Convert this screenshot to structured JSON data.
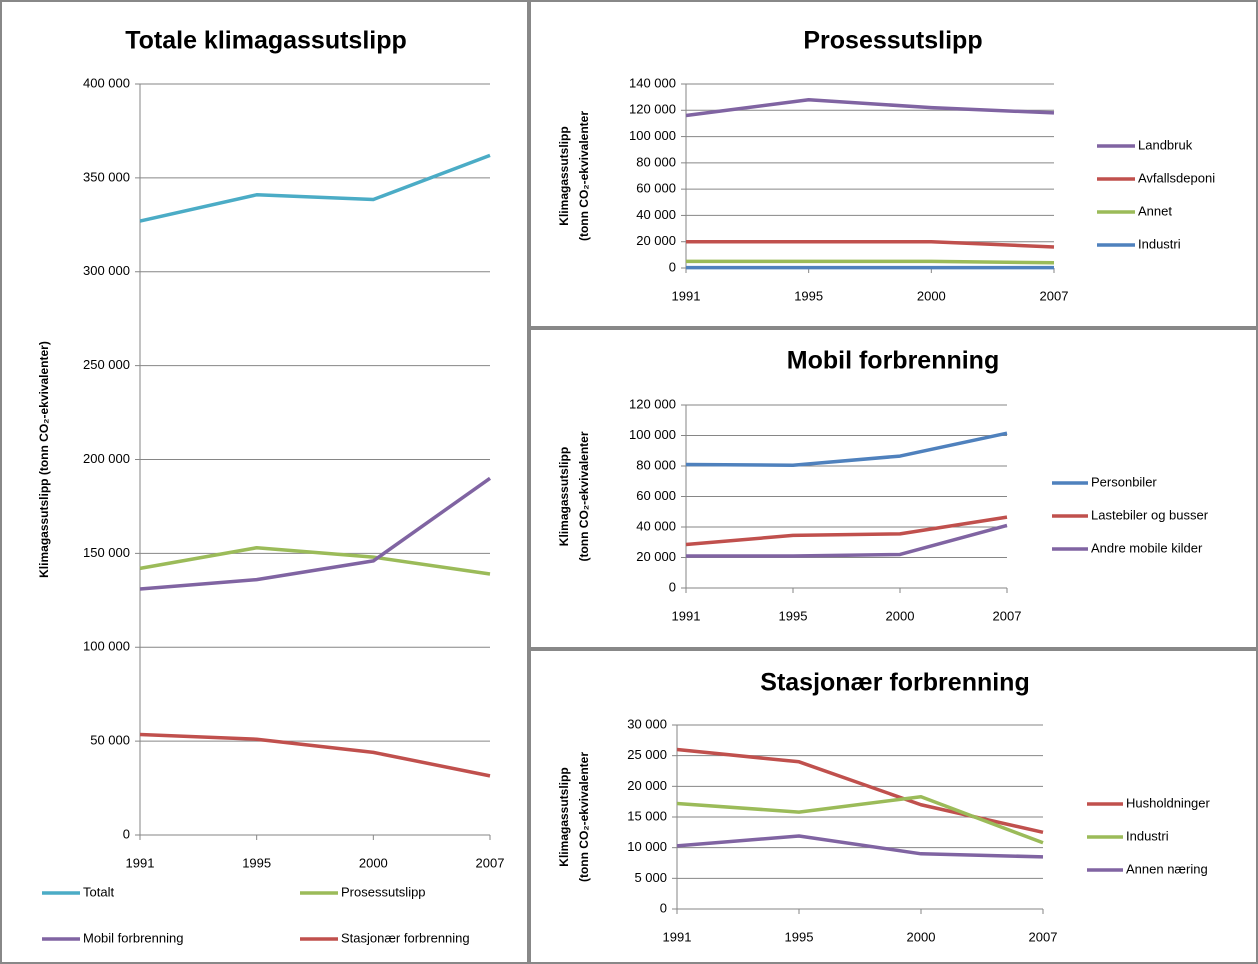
{
  "chart_data": [
    {
      "type": "line",
      "title": "Totale klimagassutslipp",
      "y_label": "Klimagassutslipp  (tonn CO₂-ekvivalenter)",
      "categories": [
        "1991",
        "1995",
        "2000",
        "2007"
      ],
      "ylim": [
        0,
        400000
      ],
      "yticks": [
        0,
        {
          "value": 50000,
          "label": "50 000"
        },
        {
          "value": 100000,
          "label": "100 000"
        },
        {
          "value": 150000,
          "label": "150 000"
        },
        {
          "value": 200000,
          "label": "200 000"
        },
        {
          "value": 250000,
          "label": "250 000"
        },
        {
          "value": 300000,
          "label": "300 000"
        },
        {
          "value": 350000,
          "label": "350 000"
        },
        {
          "value": 400000,
          "label": "400 000"
        }
      ],
      "grid": true,
      "legend": "bottom",
      "series": [
        {
          "name": "Totalt",
          "color": "#4bacc6",
          "values": [
            327000,
            341000,
            338500,
            362000
          ]
        },
        {
          "name": "Prosessutslipp",
          "color": "#9bbb59",
          "values": [
            142000,
            153000,
            148000,
            139000
          ]
        },
        {
          "name": "Mobil forbrenning",
          "color": "#8064a2",
          "values": [
            131000,
            136000,
            146000,
            190000
          ]
        },
        {
          "name": "Stasjonær forbrenning",
          "color": "#c0504d",
          "values": [
            53500,
            51000,
            44000,
            31500
          ]
        }
      ]
    },
    {
      "type": "line",
      "title": "Prosessutslipp",
      "y_label": [
        "Klimagassutslipp",
        "(tonn CO₂-ekvivalenter"
      ],
      "categories": [
        "1991",
        "1995",
        "2000",
        "2007"
      ],
      "ylim": [
        0,
        140000
      ],
      "yticks": [
        0,
        {
          "value": 20000,
          "label": "20 000"
        },
        {
          "value": 40000,
          "label": "40 000"
        },
        {
          "value": 60000,
          "label": "60 000"
        },
        {
          "value": 80000,
          "label": "80 000"
        },
        {
          "value": 100000,
          "label": "100 000"
        },
        {
          "value": 120000,
          "label": "120 000"
        },
        {
          "value": 140000,
          "label": "140 000"
        }
      ],
      "grid": true,
      "legend": "right",
      "series": [
        {
          "name": "Landbruk",
          "color": "#8064a2",
          "values": [
            116000,
            128000,
            122000,
            118000
          ]
        },
        {
          "name": "Avfallsdeponi",
          "color": "#c0504d",
          "values": [
            20000,
            20000,
            20000,
            16000
          ]
        },
        {
          "name": "Annet",
          "color": "#9bbb59",
          "values": [
            5000,
            5000,
            5000,
            4000
          ]
        },
        {
          "name": "Industri",
          "color": "#4f81bd",
          "values": [
            300,
            300,
            300,
            300
          ]
        }
      ]
    },
    {
      "type": "line",
      "title": "Mobil forbrenning",
      "y_label": [
        "Klimagassutslipp",
        "(tonn CO₂-ekvivalenter"
      ],
      "categories": [
        "1991",
        "1995",
        "2000",
        "2007"
      ],
      "ylim": [
        0,
        120000
      ],
      "yticks": [
        0,
        {
          "value": 20000,
          "label": "20 000"
        },
        {
          "value": 40000,
          "label": "40 000"
        },
        {
          "value": 60000,
          "label": "60 000"
        },
        {
          "value": 80000,
          "label": "80 000"
        },
        {
          "value": 100000,
          "label": "100 000"
        },
        {
          "value": 120000,
          "label": "120 000"
        }
      ],
      "grid": true,
      "legend": "right",
      "series": [
        {
          "name": "Personbiler",
          "color": "#4f81bd",
          "values": [
            81000,
            80500,
            86500,
            101500
          ]
        },
        {
          "name": "Lastebiler og busser",
          "color": "#c0504d",
          "values": [
            28500,
            34500,
            35500,
            46500
          ]
        },
        {
          "name": "Andre mobile kilder",
          "color": "#8064a2",
          "values": [
            21000,
            21000,
            22000,
            41000
          ]
        }
      ]
    },
    {
      "type": "line",
      "title": "Stasjonær forbrenning",
      "y_label": [
        "Klimagassutslipp",
        "(tonn CO₂-ekvivalenter"
      ],
      "categories": [
        "1991",
        "1995",
        "2000",
        "2007"
      ],
      "ylim": [
        0,
        30000
      ],
      "yticks": [
        0,
        {
          "value": 5000,
          "label": "5 000"
        },
        {
          "value": 10000,
          "label": "10 000"
        },
        {
          "value": 15000,
          "label": "15 000"
        },
        {
          "value": 20000,
          "label": "20 000"
        },
        {
          "value": 25000,
          "label": "25 000"
        },
        {
          "value": 30000,
          "label": "30 000"
        }
      ],
      "grid": true,
      "legend": "right",
      "series": [
        {
          "name": "Husholdninger",
          "color": "#c0504d",
          "values": [
            26000,
            24000,
            17000,
            12500
          ]
        },
        {
          "name": "Industri",
          "color": "#9bbb59",
          "values": [
            17200,
            15800,
            18300,
            10800
          ]
        },
        {
          "name": "Annen næring",
          "color": "#8064a2",
          "values": [
            10300,
            11900,
            9000,
            8500
          ]
        }
      ]
    }
  ]
}
